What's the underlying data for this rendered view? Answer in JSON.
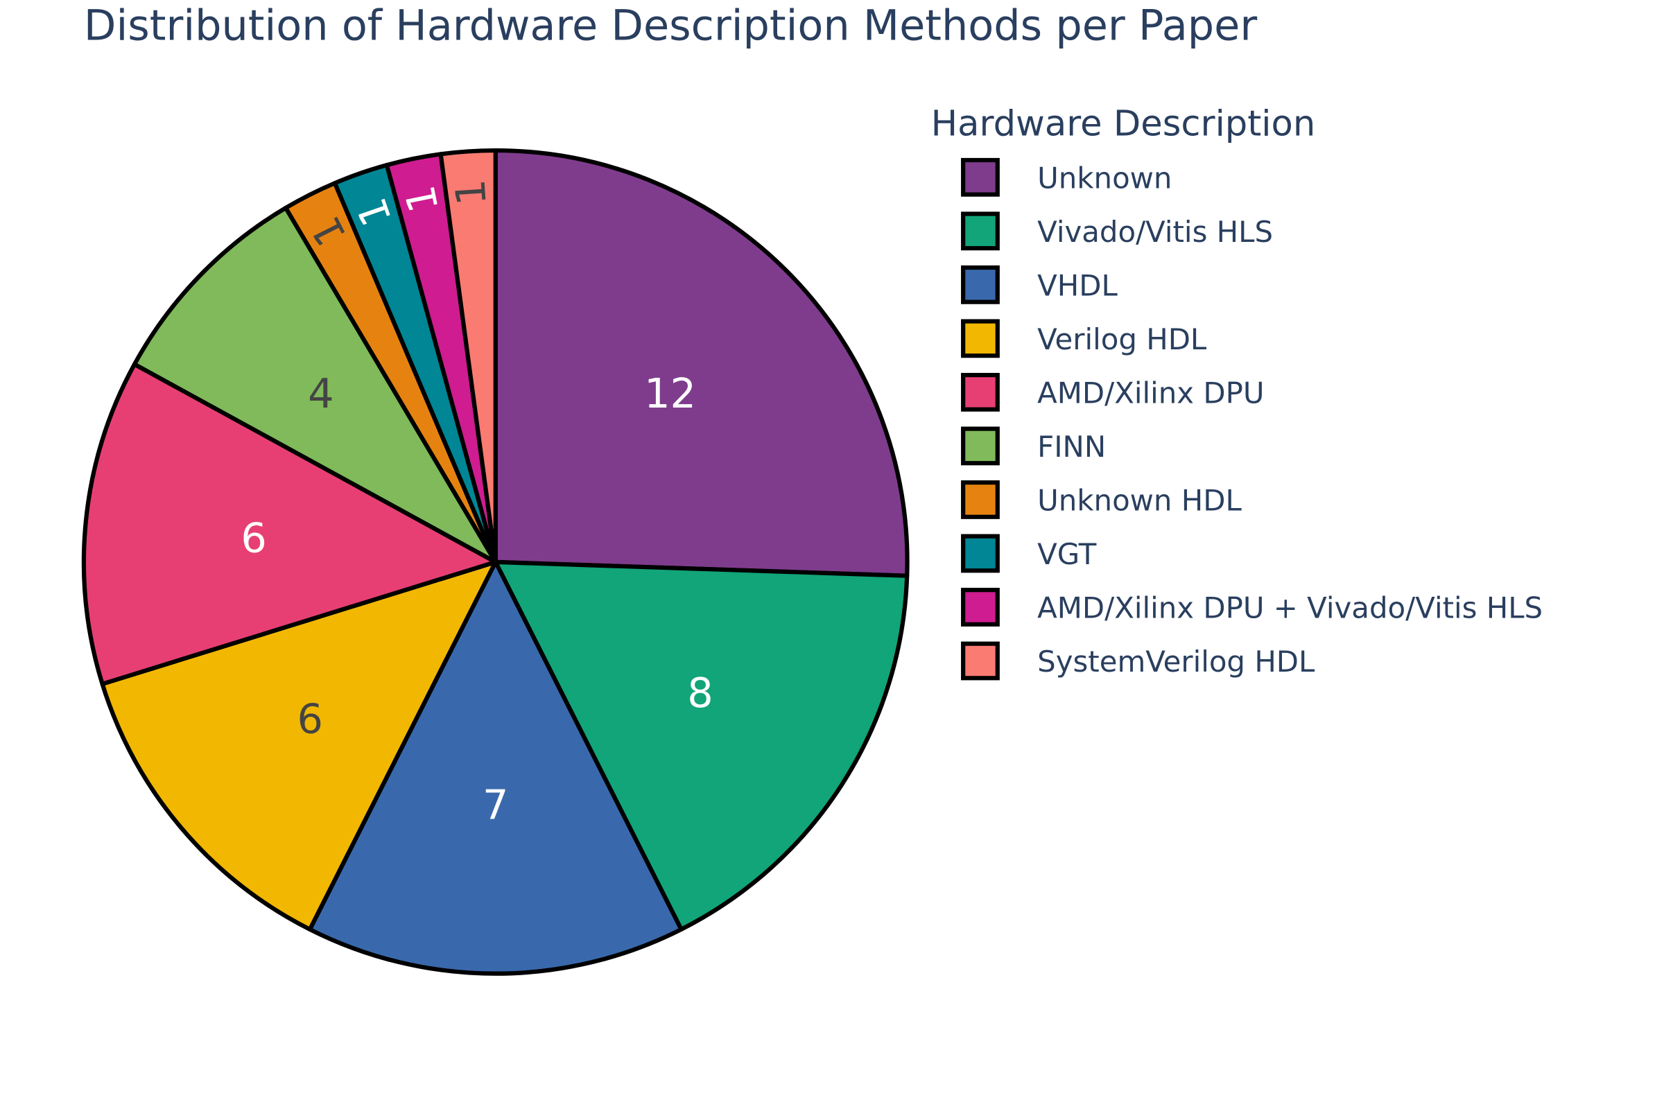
{
  "chart_data": {
    "type": "pie",
    "title": "Distribution of Hardware Description Methods per Paper",
    "legend_title": "Hardware Description",
    "legend_position": "right",
    "slices": [
      {
        "label": "Unknown",
        "value": 12,
        "color": "#7f3c8d",
        "text_color": "#ffffff"
      },
      {
        "label": "Vivado/Vitis HLS",
        "value": 8,
        "color": "#11a579",
        "text_color": "#ffffff"
      },
      {
        "label": "VHDL",
        "value": 7,
        "color": "#3969ac",
        "text_color": "#ffffff"
      },
      {
        "label": "Verilog HDL",
        "value": 6,
        "color": "#f2b701",
        "text_color": "#444444"
      },
      {
        "label": "AMD/Xilinx DPU",
        "value": 6,
        "color": "#e73f74",
        "text_color": "#ffffff"
      },
      {
        "label": "FINN",
        "value": 4,
        "color": "#80ba5a",
        "text_color": "#444444"
      },
      {
        "label": "Unknown HDL",
        "value": 1,
        "color": "#e68310",
        "text_color": "#444444"
      },
      {
        "label": "VGT",
        "value": 1,
        "color": "#008695",
        "text_color": "#ffffff"
      },
      {
        "label": "AMD/Xilinx DPU + Vivado/Vitis HLS",
        "value": 1,
        "color": "#cf1c90",
        "text_color": "#ffffff"
      },
      {
        "label": "SystemVerilog HDL",
        "value": 1,
        "color": "#f97b72",
        "text_color": "#444444"
      }
    ],
    "slice_outline_color": "#000000"
  }
}
